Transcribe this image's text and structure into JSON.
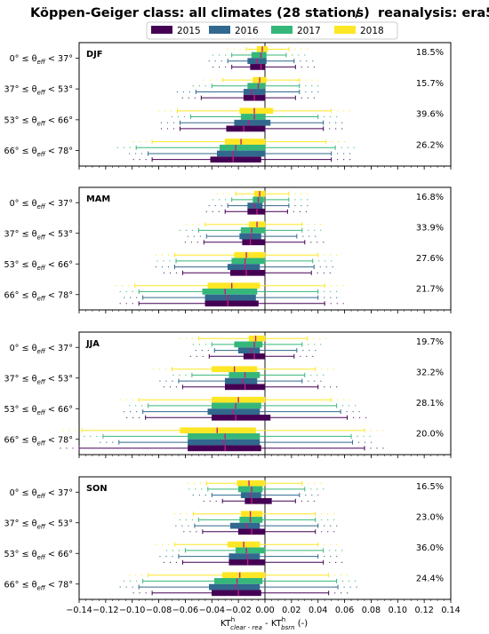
{
  "figure": {
    "title_left": "Köppen-Geiger class: all climates (28 stations)",
    "title_sep": "/",
    "title_right": "reanalysis: era5"
  },
  "colors": {
    "2015": "#440154",
    "2016": "#31688e",
    "2017": "#35b779",
    "2018": "#fde725",
    "median": "#c51b7d",
    "frame": "#000000"
  },
  "chart_data": {
    "type": "boxplot",
    "xlabel_main": "KT",
    "xlabel_sup1": "h",
    "xlabel_sub1": "clear - rea",
    "xlabel_mid": " - KT",
    "xlabel_sup2": "h",
    "xlabel_sub2": "bsrn",
    "xlabel_tail": " (-)",
    "xlim": [
      -0.14,
      0.14
    ],
    "xticks": [
      -0.14,
      -0.12,
      -0.1,
      -0.08,
      -0.06,
      -0.04,
      -0.02,
      0.0,
      0.02,
      0.04,
      0.06,
      0.08,
      0.1,
      0.12,
      0.14
    ],
    "xtick_labels": [
      "−0.14",
      "−0.12",
      "−0.10",
      "−0.08",
      "−0.06",
      "−0.04",
      "−0.02",
      "0.00",
      "0.02",
      "0.04",
      "0.06",
      "0.08",
      "0.10",
      "0.12",
      "0.14"
    ],
    "legend": [
      "2015",
      "2016",
      "2017",
      "2018"
    ],
    "legend_position": "top-center",
    "categories": [
      {
        "pre": "0° ≤ θ",
        "sub": "eff",
        "post": " < 37°"
      },
      {
        "pre": "37° ≤ θ",
        "sub": "eff",
        "post": " < 53°"
      },
      {
        "pre": "53° ≤ θ",
        "sub": "eff",
        "post": " < 66°"
      },
      {
        "pre": "66° ≤ θ",
        "sub": "eff",
        "post": " < 78°"
      }
    ],
    "panels": [
      {
        "season": "DJF",
        "percentages": [
          "18.5%",
          "15.7%",
          "39.6%",
          "26.2%"
        ],
        "groups": [
          {
            "2018": [
              -0.014,
              -0.006,
              -0.002,
              0.002,
              0.018
            ],
            "2017": [
              -0.025,
              -0.01,
              -0.003,
              0.001,
              0.016
            ],
            "2016": [
              -0.028,
              -0.013,
              -0.006,
              0.001,
              0.022
            ],
            "2015": [
              -0.025,
              -0.011,
              -0.003,
              0.0,
              0.023
            ]
          },
          {
            "2018": [
              -0.032,
              -0.009,
              -0.004,
              0.001,
              0.026
            ],
            "2017": [
              -0.04,
              -0.013,
              -0.005,
              0.0,
              0.026
            ],
            "2016": [
              -0.052,
              -0.016,
              -0.01,
              0.0,
              0.026
            ],
            "2015": [
              -0.048,
              -0.016,
              -0.008,
              0.0,
              0.023
            ]
          },
          {
            "2018": [
              -0.066,
              -0.019,
              -0.008,
              0.006,
              0.05
            ],
            "2017": [
              -0.056,
              -0.018,
              -0.008,
              0.0,
              0.04
            ],
            "2016": [
              -0.064,
              -0.023,
              -0.012,
              0.004,
              0.044
            ],
            "2015": [
              -0.064,
              -0.029,
              -0.016,
              0.0,
              0.044
            ]
          },
          {
            "2018": [
              -0.085,
              -0.03,
              -0.018,
              0.0,
              0.046
            ],
            "2017": [
              -0.097,
              -0.034,
              -0.022,
              0.0,
              0.053
            ],
            "2016": [
              -0.088,
              -0.036,
              -0.024,
              0.0,
              0.05
            ],
            "2015": [
              -0.085,
              -0.041,
              -0.024,
              -0.003,
              0.05
            ]
          }
        ]
      },
      {
        "season": "MAM",
        "percentages": [
          "16.8%",
          "33.9%",
          "27.6%",
          "21.7%"
        ],
        "groups": [
          {
            "2018": [
              -0.022,
              -0.008,
              -0.004,
              0.0,
              0.018
            ],
            "2017": [
              -0.025,
              -0.009,
              -0.005,
              -0.001,
              0.018
            ],
            "2016": [
              -0.028,
              -0.013,
              -0.008,
              -0.002,
              0.018
            ],
            "2015": [
              -0.03,
              -0.013,
              -0.006,
              0.0,
              0.017
            ]
          },
          {
            "2018": [
              -0.045,
              -0.012,
              -0.006,
              0.0,
              0.028
            ],
            "2017": [
              -0.05,
              -0.018,
              -0.01,
              0.0,
              0.028
            ],
            "2016": [
              -0.044,
              -0.019,
              -0.011,
              -0.003,
              0.024
            ],
            "2015": [
              -0.046,
              -0.017,
              -0.011,
              0.0,
              0.03
            ]
          },
          {
            "2018": [
              -0.068,
              -0.023,
              -0.014,
              0.0,
              0.04
            ],
            "2017": [
              -0.067,
              -0.025,
              -0.015,
              0.0,
              0.036
            ],
            "2016": [
              -0.068,
              -0.028,
              -0.015,
              -0.004,
              0.037
            ],
            "2015": [
              -0.062,
              -0.026,
              -0.014,
              0.0,
              0.035
            ]
          },
          {
            "2018": [
              -0.098,
              -0.043,
              -0.025,
              -0.004,
              0.045
            ],
            "2017": [
              -0.095,
              -0.047,
              -0.03,
              -0.006,
              0.04
            ],
            "2016": [
              -0.092,
              -0.045,
              -0.028,
              -0.007,
              0.04
            ],
            "2015": [
              -0.095,
              -0.045,
              -0.028,
              -0.005,
              0.045
            ]
          }
        ]
      },
      {
        "season": "JJA",
        "percentages": [
          "19.7%",
          "32.2%",
          "28.1%",
          "20.0%"
        ],
        "groups": [
          {
            "2018": [
              -0.05,
              -0.012,
              -0.007,
              0.0,
              0.032
            ],
            "2017": [
              -0.04,
              -0.023,
              -0.008,
              -0.002,
              0.028
            ],
            "2016": [
              -0.038,
              -0.02,
              -0.01,
              -0.004,
              0.024
            ],
            "2015": [
              -0.042,
              -0.016,
              -0.008,
              0.0,
              0.022
            ]
          },
          {
            "2018": [
              -0.07,
              -0.04,
              -0.023,
              -0.006,
              0.038
            ],
            "2017": [
              -0.055,
              -0.027,
              -0.015,
              -0.004,
              0.03
            ],
            "2016": [
              -0.065,
              -0.03,
              -0.017,
              -0.006,
              0.028
            ],
            "2015": [
              -0.062,
              -0.03,
              -0.015,
              0.0,
              0.04
            ]
          },
          {
            "2018": [
              -0.095,
              -0.04,
              -0.02,
              0.0,
              0.05
            ],
            "2017": [
              -0.088,
              -0.04,
              -0.022,
              -0.003,
              0.054
            ],
            "2016": [
              -0.092,
              -0.043,
              -0.024,
              -0.004,
              0.057
            ],
            "2015": [
              -0.09,
              -0.04,
              -0.022,
              0.004,
              0.062
            ]
          },
          {
            "2018": [
              -0.138,
              -0.064,
              -0.036,
              -0.007,
              0.075
            ],
            "2017": [
              -0.122,
              -0.058,
              -0.03,
              -0.004,
              0.065
            ],
            "2016": [
              -0.11,
              -0.058,
              -0.031,
              -0.004,
              0.066
            ],
            "2015": [
              -0.14,
              -0.058,
              -0.03,
              -0.003,
              0.075
            ]
          }
        ]
      },
      {
        "season": "SON",
        "percentages": [
          "16.5%",
          "23.0%",
          "36.0%",
          "24.4%"
        ],
        "groups": [
          {
            "2018": [
              -0.044,
              -0.021,
              -0.012,
              0.0,
              0.028
            ],
            "2017": [
              -0.043,
              -0.02,
              -0.01,
              -0.002,
              0.03
            ],
            "2016": [
              -0.04,
              -0.018,
              -0.011,
              -0.003,
              0.026
            ],
            "2015": [
              -0.032,
              -0.015,
              -0.01,
              0.005,
              0.023
            ]
          },
          {
            "2018": [
              -0.054,
              -0.018,
              -0.011,
              -0.002,
              0.038
            ],
            "2017": [
              -0.05,
              -0.019,
              -0.011,
              -0.002,
              0.038
            ],
            "2016": [
              -0.053,
              -0.026,
              -0.014,
              -0.004,
              0.04
            ],
            "2015": [
              -0.047,
              -0.02,
              -0.01,
              0.0,
              0.038
            ]
          },
          {
            "2018": [
              -0.068,
              -0.028,
              -0.016,
              -0.004,
              0.04
            ],
            "2017": [
              -0.06,
              -0.022,
              -0.014,
              0.0,
              0.044
            ],
            "2016": [
              -0.065,
              -0.027,
              -0.013,
              -0.004,
              0.04
            ],
            "2015": [
              -0.062,
              -0.027,
              -0.013,
              0.0,
              0.044
            ]
          },
          {
            "2018": [
              -0.088,
              -0.032,
              -0.019,
              0.0,
              0.048
            ],
            "2017": [
              -0.092,
              -0.038,
              -0.021,
              -0.002,
              0.054
            ],
            "2016": [
              -0.095,
              -0.042,
              -0.022,
              -0.004,
              0.055
            ],
            "2015": [
              -0.085,
              -0.04,
              -0.02,
              -0.003,
              0.048
            ]
          }
        ]
      }
    ]
  }
}
